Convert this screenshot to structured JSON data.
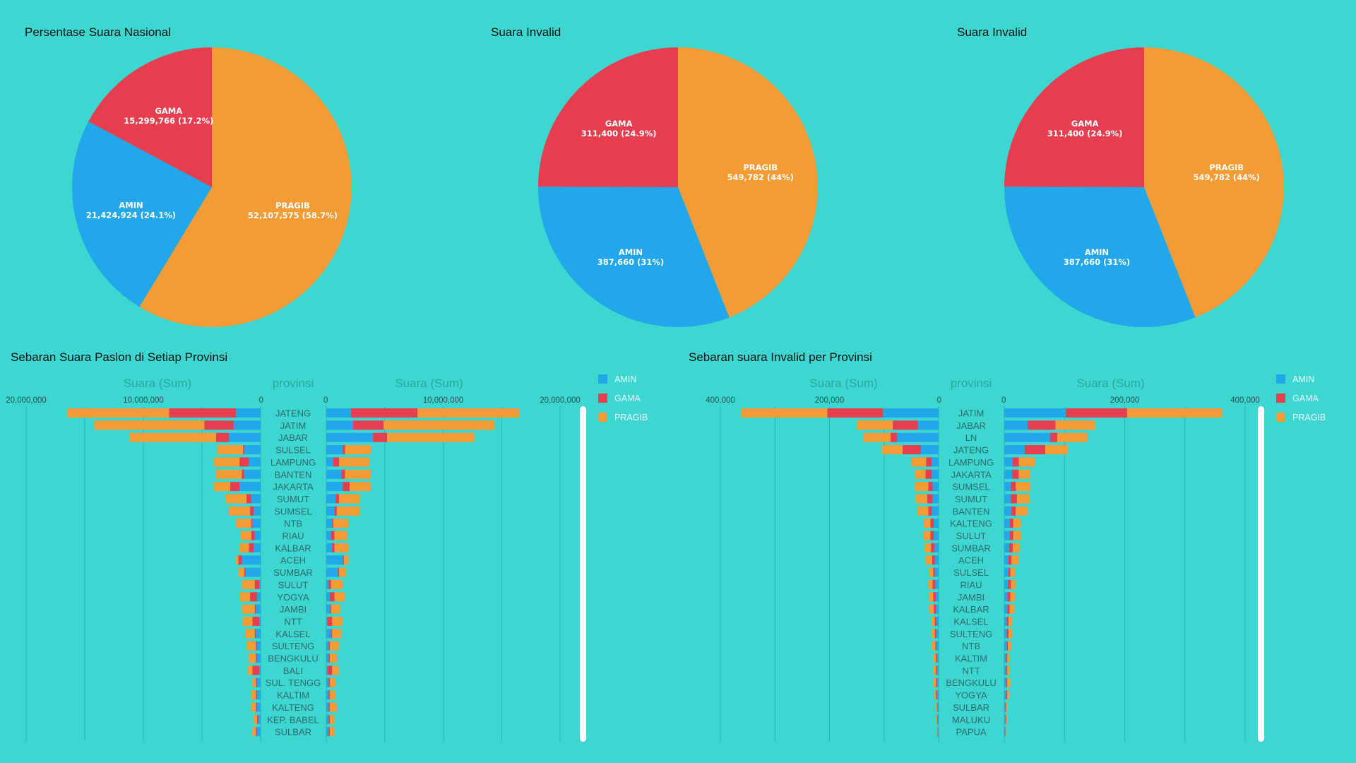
{
  "colors": {
    "AMIN": "#22a7ea",
    "GAMA": "#e63d4f",
    "PRAGIB": "#f49b36"
  },
  "legend": [
    "AMIN",
    "GAMA",
    "PRAGIB"
  ],
  "chart_data": [
    {
      "type": "pie",
      "title": "Persentase Suara Nasional",
      "slices": [
        {
          "name": "PRAGIB",
          "value": 52107575,
          "label": "52,107,575 (58.7%)"
        },
        {
          "name": "AMIN",
          "value": 21424924,
          "label": "21,424,924 (24.1%)"
        },
        {
          "name": "GAMA",
          "value": 15299766,
          "label": "15,299,766 (17.2%)"
        }
      ]
    },
    {
      "type": "pie",
      "title": "Suara Invalid",
      "slices": [
        {
          "name": "PRAGIB",
          "value": 549782,
          "label": "549,782 (44%)"
        },
        {
          "name": "AMIN",
          "value": 387660,
          "label": "387,660 (31%)"
        },
        {
          "name": "GAMA",
          "value": 311400,
          "label": "311,400 (24.9%)"
        }
      ]
    },
    {
      "type": "pie",
      "title": "Suara Invalid",
      "slices": [
        {
          "name": "PRAGIB",
          "value": 549782,
          "label": "549,782 (44%)"
        },
        {
          "name": "AMIN",
          "value": 387660,
          "label": "387,660 (31%)"
        },
        {
          "name": "GAMA",
          "value": 311400,
          "label": "311,400 (24.9%)"
        }
      ]
    },
    {
      "type": "bar",
      "title": "Sebaran Suara Paslon di Setiap Provinsi",
      "axis_title": "Suara (Sum)",
      "category_title": "provinsi",
      "xlim": [
        0,
        20000000
      ],
      "ticks": [
        "20,000,000",
        "10,000,000",
        "0"
      ],
      "ticks_right": [
        "0",
        "10,000,000",
        "20,000,000"
      ],
      "tick_values": [
        20000000,
        10000000,
        0
      ],
      "tick_values_right": [
        0,
        10000000,
        20000000
      ],
      "gridlines": [
        0,
        5000000,
        10000000,
        15000000,
        20000000
      ],
      "categories": [
        "JATENG",
        "JATIM",
        "JABAR",
        "SULSEL",
        "LAMPUNG",
        "BANTEN",
        "JAKARTA",
        "SUMUT",
        "SUMSEL",
        "NTB",
        "RIAU",
        "KALBAR",
        "ACEH",
        "SUMBAR",
        "SULUT",
        "YOGYA",
        "JAMBI",
        "NTT",
        "KALSEL",
        "SULTENG",
        "BENGKULU",
        "BALI",
        "SUL. TENGG",
        "KALTIM",
        "KALTENG",
        "KEP. BABEL",
        "SULBAR"
      ],
      "left_series": [
        {
          "name": "AMIN",
          "values": [
            2100000,
            2300000,
            2700000,
            1400000,
            1000000,
            1400000,
            1800000,
            800000,
            600000,
            700000,
            500000,
            600000,
            1600000,
            1300000,
            100000,
            300000,
            400000,
            100000,
            400000,
            300000,
            300000,
            100000,
            300000,
            300000,
            300000,
            200000,
            300000
          ]
        },
        {
          "name": "GAMA",
          "values": [
            5700000,
            2500000,
            1100000,
            100000,
            800000,
            200000,
            800000,
            400000,
            300000,
            100000,
            300000,
            400000,
            300000,
            100000,
            400000,
            600000,
            100000,
            600000,
            100000,
            100000,
            100000,
            600000,
            100000,
            100000,
            100000,
            100000,
            100000
          ]
        },
        {
          "name": "PRAGIB",
          "values": [
            8700000,
            9400000,
            7400000,
            2200000,
            2200000,
            2200000,
            1400000,
            1800000,
            1800000,
            1300000,
            900000,
            800000,
            200000,
            500000,
            1100000,
            900000,
            1100000,
            800000,
            800000,
            800000,
            600000,
            400000,
            300000,
            400000,
            400000,
            300000,
            300000
          ]
        }
      ],
      "right_series": [
        {
          "name": "AMIN",
          "values": [
            2100000,
            2300000,
            4000000,
            1400000,
            600000,
            1300000,
            1400000,
            800000,
            700000,
            500000,
            400000,
            500000,
            1400000,
            1000000,
            200000,
            300000,
            300000,
            100000,
            400000,
            200000,
            200000,
            100000,
            200000,
            200000,
            200000,
            200000,
            200000
          ]
        },
        {
          "name": "GAMA",
          "values": [
            5700000,
            2600000,
            1200000,
            200000,
            500000,
            300000,
            600000,
            300000,
            200000,
            100000,
            300000,
            200000,
            100000,
            100000,
            200000,
            400000,
            100000,
            400000,
            100000,
            100000,
            100000,
            400000,
            100000,
            100000,
            100000,
            100000,
            100000
          ]
        },
        {
          "name": "PRAGIB",
          "values": [
            8700000,
            9500000,
            7500000,
            2200000,
            2600000,
            2200000,
            1800000,
            1800000,
            2000000,
            1300000,
            1100000,
            1200000,
            400000,
            600000,
            1000000,
            900000,
            800000,
            900000,
            800000,
            800000,
            600000,
            600000,
            500000,
            500000,
            600000,
            400000,
            400000
          ]
        }
      ]
    },
    {
      "type": "bar",
      "title": "Sebaran suara Invalid per Provinsi",
      "axis_title": "Suara (Sum)",
      "category_title": "provinsi",
      "xlim": [
        0,
        400000
      ],
      "ticks": [
        "400,000",
        "200,000",
        "0"
      ],
      "ticks_right": [
        "0",
        "200,000",
        "400,000"
      ],
      "tick_values": [
        400000,
        200000,
        0
      ],
      "tick_values_right": [
        0,
        200000,
        400000
      ],
      "gridlines": [
        0,
        100000,
        200000,
        300000,
        400000
      ],
      "categories": [
        "JATIM",
        "JABAR",
        "LN",
        "JATENG",
        "LAMPUNG",
        "JAKARTA",
        "SUMSEL",
        "SUMUT",
        "BANTEN",
        "KALTENG",
        "SULUT",
        "SUMBAR",
        "ACEH",
        "SULSEL",
        "RIAU",
        "JAMBI",
        "KALBAR",
        "KALSEL",
        "SULTENG",
        "NTB",
        "KALTIM",
        "NTT",
        "BENGKULU",
        "YOGYA",
        "SULBAR",
        "MALUKU",
        "PAPUA"
      ],
      "left_series": [
        {
          "name": "AMIN",
          "values": [
            102000,
            38000,
            76000,
            33000,
            13000,
            13000,
            11000,
            11000,
            12000,
            9000,
            9000,
            8000,
            7000,
            7000,
            6000,
            5000,
            5000,
            4000,
            4000,
            4000,
            3000,
            3000,
            3000,
            3000,
            2000,
            2000,
            1000
          ]
        },
        {
          "name": "GAMA",
          "values": [
            102000,
            46000,
            12000,
            33000,
            10000,
            11000,
            8000,
            10000,
            7000,
            6000,
            6000,
            6000,
            5000,
            3000,
            5000,
            5000,
            4000,
            3000,
            3000,
            2000,
            2000,
            2000,
            2000,
            2000,
            1000,
            1000,
            1000
          ]
        },
        {
          "name": "PRAGIB",
          "values": [
            158000,
            66000,
            50000,
            38000,
            27000,
            19000,
            24000,
            21000,
            20000,
            12000,
            13000,
            12000,
            12000,
            8000,
            8000,
            8000,
            8000,
            6000,
            6000,
            6000,
            4000,
            4000,
            5000,
            3000,
            2000,
            2000,
            1000
          ]
        }
      ],
      "right_series": [
        {
          "name": "AMIN",
          "values": [
            102000,
            39000,
            76000,
            34000,
            14000,
            13000,
            11000,
            11000,
            12000,
            9000,
            9000,
            8000,
            7000,
            7000,
            6000,
            5000,
            5000,
            4000,
            4000,
            4000,
            3000,
            3000,
            3000,
            3000,
            2000,
            2000,
            1000
          ]
        },
        {
          "name": "GAMA",
          "values": [
            102000,
            46000,
            12000,
            34000,
            10000,
            11000,
            8000,
            10000,
            7000,
            6000,
            6000,
            6000,
            5000,
            3000,
            5000,
            5000,
            4000,
            3000,
            3000,
            2000,
            2000,
            2000,
            2000,
            2000,
            1000,
            1000,
            1000
          ]
        },
        {
          "name": "PRAGIB",
          "values": [
            158000,
            66000,
            50000,
            38000,
            27000,
            19000,
            24000,
            21000,
            20000,
            12000,
            13000,
            12000,
            12000,
            8000,
            8000,
            8000,
            8000,
            6000,
            6000,
            6000,
            4000,
            4000,
            5000,
            3000,
            2000,
            2000,
            1000
          ]
        }
      ]
    }
  ]
}
